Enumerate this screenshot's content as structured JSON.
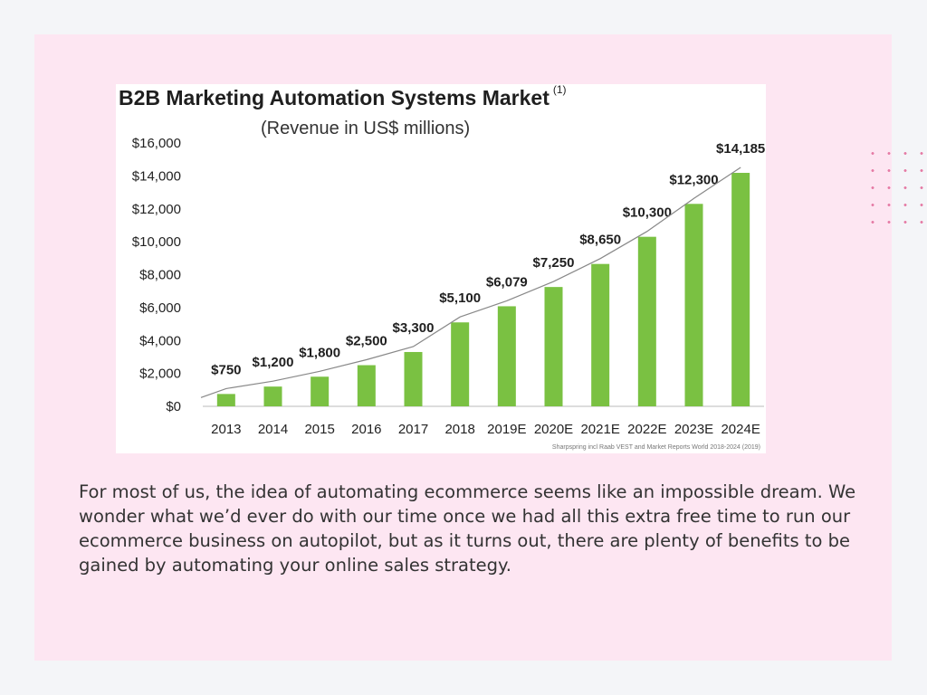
{
  "colors": {
    "page_background": "#f4f5f8",
    "slide_background": "#fde6f2",
    "bar_color": "#7ac142",
    "trend_line": "#888888",
    "dot_accent": "#e57ba5"
  },
  "chart_data": {
    "type": "bar",
    "title": "B2B Marketing Automation Systems Market",
    "title_footnote": "(1)",
    "subtitle": "(Revenue in US$ millions)",
    "categories": [
      "2013",
      "2014",
      "2015",
      "2016",
      "2017",
      "2018",
      "2019E",
      "2020E",
      "2021E",
      "2022E",
      "2023E",
      "2024E"
    ],
    "values": [
      750,
      1200,
      1800,
      2500,
      3300,
      5100,
      6079,
      7250,
      8650,
      10300,
      12300,
      14185
    ],
    "value_labels": [
      "$750",
      "$1,200",
      "$1,800",
      "$2,500",
      "$3,300",
      "$5,100",
      "$6,079",
      "$7,250",
      "$8,650",
      "$10,300",
      "$12,300",
      "$14,185"
    ],
    "yticks": [
      0,
      2000,
      4000,
      6000,
      8000,
      10000,
      12000,
      14000,
      16000
    ],
    "ytick_labels": [
      "$0",
      "$2,000",
      "$4,000",
      "$6,000",
      "$8,000",
      "$10,000",
      "$12,000",
      "$14,000",
      "$16,000"
    ],
    "ylim": [
      0,
      16000
    ],
    "trend_line": true,
    "grid": false,
    "source": "Sharpspring incl Raab VEST and Market Reports World 2018-2024 (2019)"
  },
  "body_text": "For most of us, the idea of automating ecommerce seems like an impossible dream. We wonder what we’d ever do with our time once we had all this extra free time to run our ecommerce business on autopilot, but as it turns out, there are plenty of benefits to be gained by automating your online sales strategy."
}
